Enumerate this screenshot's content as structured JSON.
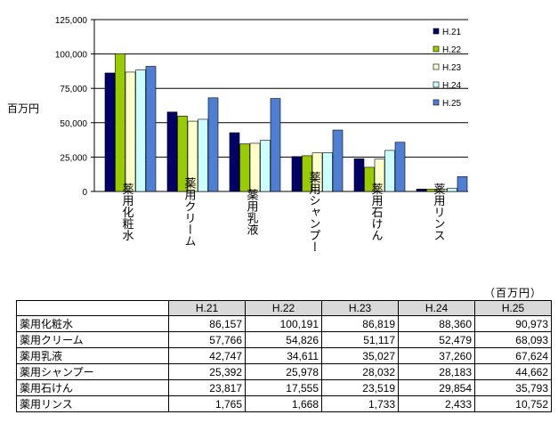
{
  "chart_data": {
    "type": "bar",
    "ylabel": "百万円",
    "ylim": [
      0,
      125000
    ],
    "yticks": [
      "0",
      "25,000",
      "50,000",
      "75,000",
      "100,000",
      "125,000"
    ],
    "categories": [
      "薬用化粧水",
      "薬用クリーム",
      "薬用乳液",
      "薬用シャンプー",
      "薬用石けん",
      "薬用リンス"
    ],
    "series": [
      {
        "name": "H.21",
        "color": "#000066",
        "values": [
          86157,
          57766,
          42747,
          25392,
          23817,
          1765
        ]
      },
      {
        "name": "H.22",
        "color": "#99cc00",
        "values": [
          100191,
          54826,
          34611,
          25978,
          17555,
          1668
        ]
      },
      {
        "name": "H.23",
        "color": "#ffffcc",
        "values": [
          86819,
          51117,
          35027,
          28032,
          23519,
          1733
        ]
      },
      {
        "name": "H.24",
        "color": "#ccffff",
        "values": [
          88360,
          52479,
          37260,
          28183,
          29854,
          2433
        ]
      },
      {
        "name": "H.25",
        "color": "#4f7fd4",
        "values": [
          90973,
          68093,
          67624,
          44662,
          35793,
          10752
        ]
      }
    ],
    "grid": true,
    "legend": "right"
  },
  "table": {
    "unit": "（百万円）",
    "headers": [
      "H.21",
      "H.22",
      "H.23",
      "H.24",
      "H.25"
    ],
    "rows": [
      {
        "label": "薬用化粧水",
        "cells": [
          "86,157",
          "100,191",
          "86,819",
          "88,360",
          "90,973"
        ]
      },
      {
        "label": "薬用クリーム",
        "cells": [
          "57,766",
          "54,826",
          "51,117",
          "52,479",
          "68,093"
        ]
      },
      {
        "label": "薬用乳液",
        "cells": [
          "42,747",
          "34,611",
          "35,027",
          "37,260",
          "67,624"
        ]
      },
      {
        "label": "薬用シャンプー",
        "cells": [
          "25,392",
          "25,978",
          "28,032",
          "28,183",
          "44,662"
        ]
      },
      {
        "label": "薬用石けん",
        "cells": [
          "23,817",
          "17,555",
          "23,519",
          "29,854",
          "35,793"
        ]
      },
      {
        "label": "薬用リンス",
        "cells": [
          "1,765",
          "1,668",
          "1,733",
          "2,433",
          "10,752"
        ]
      }
    ]
  }
}
